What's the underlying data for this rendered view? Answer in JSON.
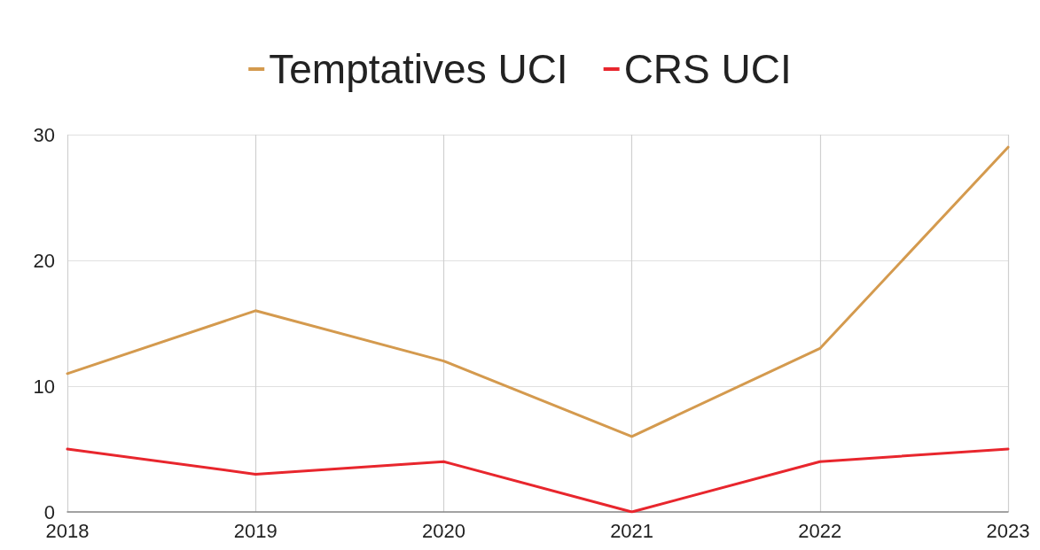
{
  "chart_data": {
    "type": "line",
    "categories": [
      "2018",
      "2019",
      "2020",
      "2021",
      "2022",
      "2023"
    ],
    "series": [
      {
        "name": "Temptatives UCI",
        "color": "#d49a4e",
        "values": [
          11,
          16,
          12,
          6,
          13,
          29
        ]
      },
      {
        "name": "CRS UCI",
        "color": "#e8262d",
        "values": [
          5,
          3,
          4,
          0,
          4,
          5
        ]
      }
    ],
    "ylim": [
      0,
      30
    ],
    "yticks": [
      0,
      10,
      20,
      30
    ],
    "grid": true,
    "legend": "top",
    "marker": "none",
    "line_style": "solid"
  }
}
